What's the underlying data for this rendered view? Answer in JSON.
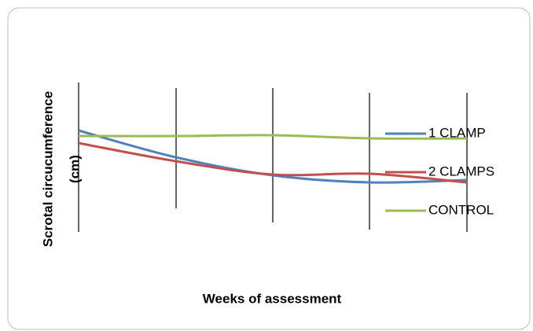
{
  "chart_data": {
    "type": "line",
    "y_label": [
      "Scrotal circucumference",
      "(cm)"
    ],
    "x_label": "Weeks of assessment",
    "categories": [
      null,
      null,
      null,
      null,
      null
    ],
    "ylim": [
      0,
      100
    ],
    "series": [
      {
        "name": "1 CLAMP",
        "color": "#4f81bd",
        "values": [
          67,
          50,
          38.5,
          34,
          35.5
        ]
      },
      {
        "name": "2 CLAMPS",
        "color": "#c0504d",
        "values": [
          59,
          47.5,
          39,
          39.5,
          34
        ]
      },
      {
        "name": "CONTROL",
        "color": "#9bbb59",
        "values": [
          63.5,
          63.5,
          64,
          62,
          62
        ]
      }
    ]
  }
}
